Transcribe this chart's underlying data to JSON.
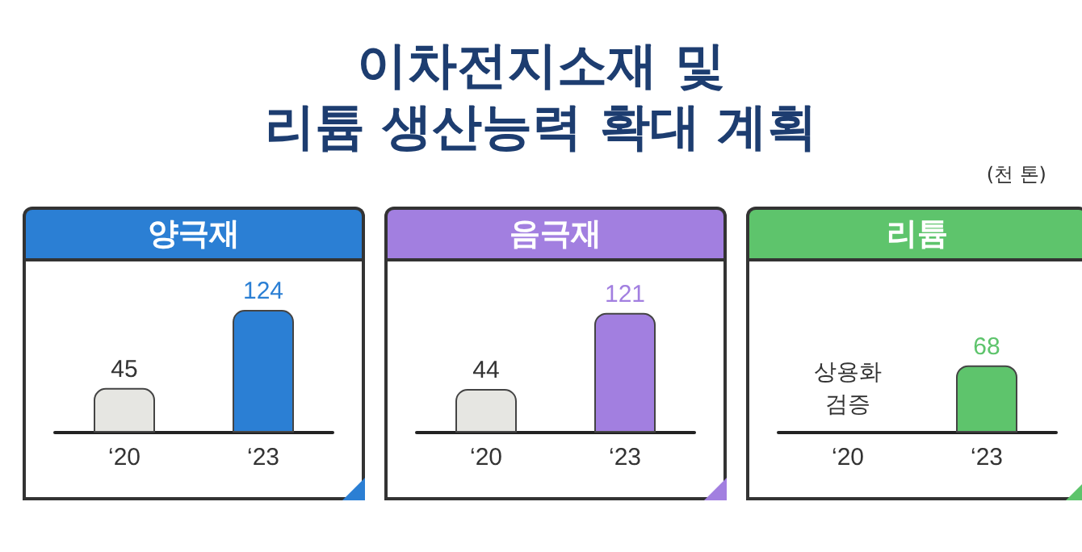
{
  "chart_data": [
    {
      "type": "other",
      "title": "이차전지소재 및\n리튬 생산능력 확대 계획",
      "annotations": [
        "(천 톤)"
      ]
    },
    {
      "type": "bar",
      "title": "양극재",
      "categories": [
        "‘20",
        "‘23"
      ],
      "values": [
        45,
        124
      ],
      "colors": [
        "#e6e6e2",
        "#2b7fd4"
      ],
      "data_labels": true
    },
    {
      "type": "bar",
      "title": "음극재",
      "categories": [
        "‘20",
        "‘23"
      ],
      "values": [
        44,
        121
      ],
      "colors": [
        "#e6e6e2",
        "#a27fe0"
      ],
      "data_labels": true
    },
    {
      "type": "bar",
      "title": "리튬",
      "categories": [
        "‘20",
        "‘23"
      ],
      "values": [
        null,
        68
      ],
      "colors": [
        "#e6e6e2",
        "#5ec46c"
      ],
      "data_labels": true,
      "annotations": [
        "상용화 검증"
      ]
    }
  ]
}
